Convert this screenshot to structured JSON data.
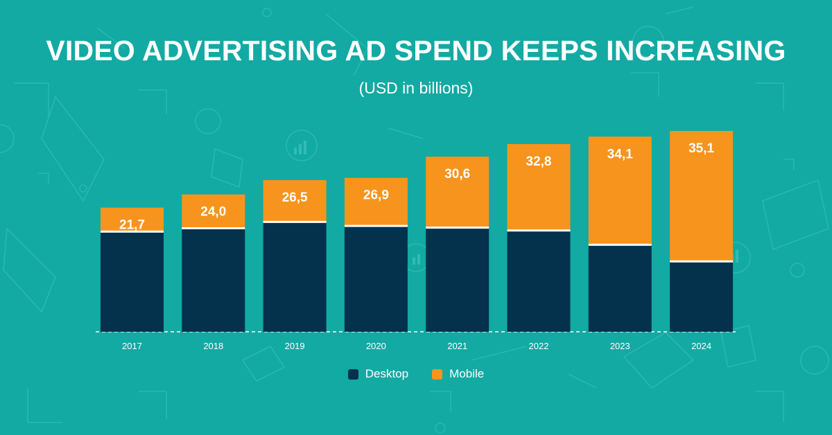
{
  "title": "VIDEO ADVERTISING AD SPEND KEEPS INCREASING",
  "subtitle": "(USD in billions)",
  "colors": {
    "background": "#12aaa3",
    "desktop": "#04324d",
    "mobile": "#f7941d",
    "text": "#ffffff"
  },
  "chart_data": {
    "type": "bar",
    "stacked": true,
    "categories": [
      "2017",
      "2018",
      "2019",
      "2020",
      "2021",
      "2022",
      "2023",
      "2024"
    ],
    "series": [
      {
        "name": "Desktop",
        "values": [
          17.5,
          18.1,
          19.2,
          18.5,
          18.2,
          17.7,
          15.2,
          12.3
        ]
      },
      {
        "name": "Mobile",
        "values": [
          4.2,
          5.9,
          7.3,
          8.4,
          12.4,
          15.1,
          18.9,
          22.8
        ]
      }
    ],
    "totals": [
      "21,7",
      "24,0",
      "26,5",
      "26,9",
      "30,6",
      "32,8",
      "34,1",
      "35,1"
    ],
    "ylim": [
      0,
      35.1
    ],
    "grid": false,
    "legend_position": "bottom"
  }
}
